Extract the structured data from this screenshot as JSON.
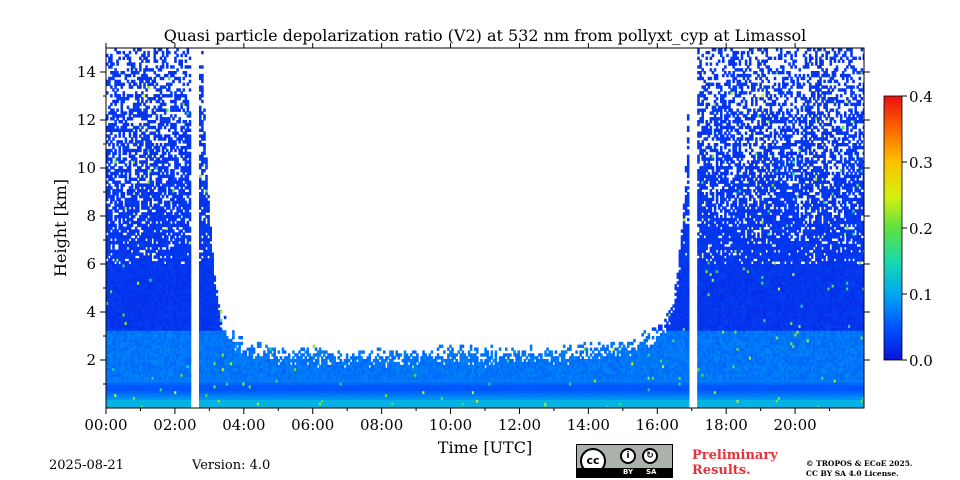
{
  "chart_data": {
    "type": "heatmap",
    "title": "Quasi particle depolarization ratio (V2) at 532 nm from pollyxt_cyp at Limassol",
    "xlabel": "Time [UTC]",
    "ylabel": "Height [km]",
    "xlim": [
      0,
      22
    ],
    "ylim": [
      0,
      15
    ],
    "x_ticks": [
      0,
      2,
      4,
      6,
      8,
      10,
      12,
      14,
      16,
      18,
      20
    ],
    "x_tick_labels": [
      "00:00",
      "02:00",
      "04:00",
      "06:00",
      "08:00",
      "10:00",
      "12:00",
      "14:00",
      "16:00",
      "18:00",
      "20:00"
    ],
    "y_ticks": [
      2,
      4,
      6,
      8,
      10,
      12,
      14
    ],
    "y_tick_labels": [
      "2",
      "4",
      "6",
      "8",
      "10",
      "12",
      "14"
    ],
    "colorbar": {
      "min": 0.0,
      "max": 0.4,
      "ticks": [
        0.0,
        0.1,
        0.2,
        0.3,
        0.4
      ],
      "tick_labels": [
        "0.0",
        "0.1",
        "0.2",
        "0.3",
        "0.4"
      ],
      "colormap": "jet"
    },
    "data_gaps_hours": [
      [
        2.5,
        2.7
      ],
      [
        16.95,
        17.15
      ]
    ],
    "valid_data_top_km_night": 15,
    "valid_data_top_km_midday": 2.5,
    "typical_value_low_layer": 0.07,
    "typical_value_upper": 0.02
  },
  "footer": {
    "date": "2025-08-21",
    "version": "Version: 4.0",
    "cc_badge": {
      "cc": "cc",
      "by": "BY",
      "sa": "SA",
      "person_icon": "person-icon",
      "share_icon": "share-alike-icon"
    },
    "preliminary_line1": "Preliminary",
    "preliminary_line2": "Results.",
    "license_line1": "© TROPOS & ECoE 2025.",
    "license_line2": "CC BY SA 4.0 License."
  }
}
